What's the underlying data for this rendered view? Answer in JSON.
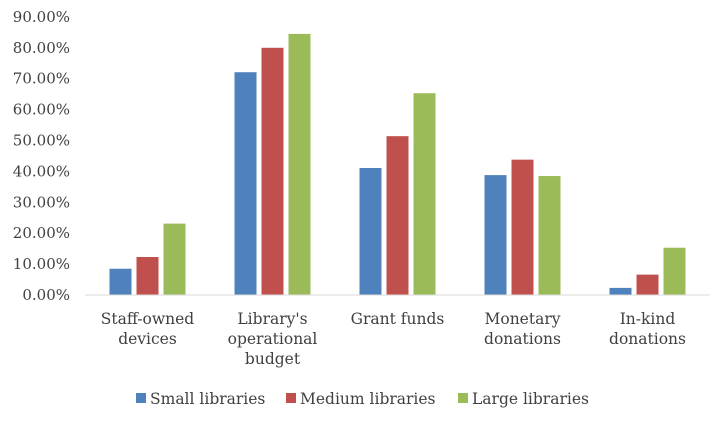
{
  "chart_data": {
    "type": "bar",
    "categories": [
      [
        "Staff-owned",
        "devices"
      ],
      [
        "Library's",
        "operational",
        "budget"
      ],
      [
        "Grant funds"
      ],
      [
        "Monetary",
        "donations"
      ],
      [
        "In-kind",
        "donations"
      ]
    ],
    "series": [
      {
        "name": "Small libraries",
        "color": "#4F81BD",
        "values": [
          8.5,
          72.1,
          41.1,
          38.8,
          2.3
        ]
      },
      {
        "name": "Medium libraries",
        "color": "#C0504D",
        "values": [
          12.3,
          80.0,
          51.4,
          43.8,
          6.6
        ]
      },
      {
        "name": "Large libraries",
        "color": "#9BBB59",
        "values": [
          23.1,
          84.5,
          65.3,
          38.5,
          15.3
        ]
      }
    ],
    "y_ticks": [
      "0.00%",
      "10.00%",
      "20.00%",
      "30.00%",
      "40.00%",
      "50.00%",
      "60.00%",
      "70.00%",
      "80.00%",
      "90.00%"
    ],
    "ylim": [
      0,
      90
    ],
    "grid": false,
    "legend": "bottom",
    "title": "",
    "xlabel": "",
    "ylabel": ""
  }
}
